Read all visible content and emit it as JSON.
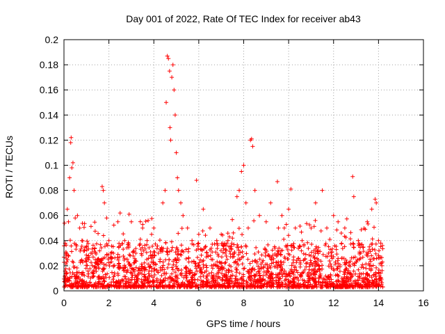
{
  "chart_data": {
    "type": "scatter",
    "title": "Day 001 of 2022, Rate Of TEC Index for receiver ab43",
    "xlabel": "GPS time / hours",
    "ylabel": "ROTI / TECUs",
    "xlim": [
      0,
      16
    ],
    "ylim": [
      0,
      0.2
    ],
    "xticks": [
      0,
      2,
      4,
      6,
      8,
      10,
      12,
      14,
      16
    ],
    "yticks": [
      0,
      0.02,
      0.04,
      0.06,
      0.08,
      0.1,
      0.12,
      0.14,
      0.16,
      0.18,
      0.2
    ],
    "xtick_labels": [
      "0",
      "2",
      "4",
      "6",
      "8",
      "10",
      "12",
      "14",
      "16"
    ],
    "ytick_labels": [
      "0",
      "0.02",
      "0.04",
      "0.06",
      "0.08",
      "0.1",
      "0.12",
      "0.14",
      "0.16",
      "0.18",
      "0.2"
    ],
    "grid": true,
    "marker": "+",
    "color": "#ff0000",
    "x_data_range": [
      0,
      14.2
    ],
    "series": [
      {
        "name": "ROTI",
        "points": [
          [
            0.05,
            0.012
          ],
          [
            0.1,
            0.03
          ],
          [
            0.15,
            0.065
          ],
          [
            0.2,
            0.055
          ],
          [
            0.25,
            0.09
          ],
          [
            0.3,
            0.118
          ],
          [
            0.32,
            0.122
          ],
          [
            0.35,
            0.098
          ],
          [
            0.4,
            0.102
          ],
          [
            0.45,
            0.08
          ],
          [
            0.5,
            0.058
          ],
          [
            0.6,
            0.06
          ],
          [
            0.7,
            0.05
          ],
          [
            0.8,
            0.04
          ],
          [
            1.0,
            0.035
          ],
          [
            1.2,
            0.03
          ],
          [
            1.5,
            0.025
          ],
          [
            1.7,
            0.083
          ],
          [
            1.75,
            0.08
          ],
          [
            1.8,
            0.07
          ],
          [
            1.9,
            0.058
          ],
          [
            2.0,
            0.04
          ],
          [
            2.2,
            0.03
          ],
          [
            2.4,
            0.055
          ],
          [
            2.5,
            0.062
          ],
          [
            2.7,
            0.04
          ],
          [
            2.9,
            0.061
          ],
          [
            3.0,
            0.055
          ],
          [
            3.2,
            0.03
          ],
          [
            3.5,
            0.05
          ],
          [
            3.7,
            0.04
          ],
          [
            3.9,
            0.045
          ],
          [
            4.0,
            0.05
          ],
          [
            4.2,
            0.03
          ],
          [
            4.4,
            0.07
          ],
          [
            4.5,
            0.08
          ],
          [
            4.55,
            0.15
          ],
          [
            4.6,
            0.187
          ],
          [
            4.65,
            0.185
          ],
          [
            4.7,
            0.175
          ],
          [
            4.72,
            0.13
          ],
          [
            4.75,
            0.12
          ],
          [
            4.8,
            0.17
          ],
          [
            4.85,
            0.18
          ],
          [
            4.9,
            0.16
          ],
          [
            4.95,
            0.14
          ],
          [
            5.0,
            0.11
          ],
          [
            5.05,
            0.09
          ],
          [
            5.1,
            0.08
          ],
          [
            5.2,
            0.07
          ],
          [
            5.3,
            0.06
          ],
          [
            5.5,
            0.05
          ],
          [
            5.7,
            0.04
          ],
          [
            5.9,
            0.088
          ],
          [
            6.0,
            0.045
          ],
          [
            6.2,
            0.065
          ],
          [
            6.5,
            0.05
          ],
          [
            6.8,
            0.04
          ],
          [
            7.0,
            0.045
          ],
          [
            7.3,
            0.04
          ],
          [
            7.5,
            0.042
          ],
          [
            7.7,
            0.075
          ],
          [
            7.8,
            0.08
          ],
          [
            7.9,
            0.095
          ],
          [
            8.0,
            0.1
          ],
          [
            8.1,
            0.07
          ],
          [
            8.2,
            0.05
          ],
          [
            8.3,
            0.12
          ],
          [
            8.35,
            0.121
          ],
          [
            8.4,
            0.115
          ],
          [
            8.5,
            0.08
          ],
          [
            8.7,
            0.06
          ],
          [
            9.0,
            0.055
          ],
          [
            9.2,
            0.07
          ],
          [
            9.5,
            0.087
          ],
          [
            9.7,
            0.06
          ],
          [
            10.0,
            0.065
          ],
          [
            10.1,
            0.081
          ],
          [
            10.3,
            0.05
          ],
          [
            10.6,
            0.04
          ],
          [
            11.0,
            0.05
          ],
          [
            11.2,
            0.07
          ],
          [
            11.5,
            0.08
          ],
          [
            11.7,
            0.05
          ],
          [
            12.0,
            0.06
          ],
          [
            12.2,
            0.055
          ],
          [
            12.5,
            0.05
          ],
          [
            12.85,
            0.091
          ],
          [
            12.9,
            0.075
          ],
          [
            13.1,
            0.04
          ],
          [
            13.5,
            0.055
          ],
          [
            13.7,
            0.065
          ],
          [
            13.85,
            0.073
          ],
          [
            13.9,
            0.07
          ],
          [
            14.0,
            0.04
          ],
          [
            14.1,
            0.038
          ],
          [
            14.15,
            0.02
          ]
        ]
      }
    ]
  }
}
